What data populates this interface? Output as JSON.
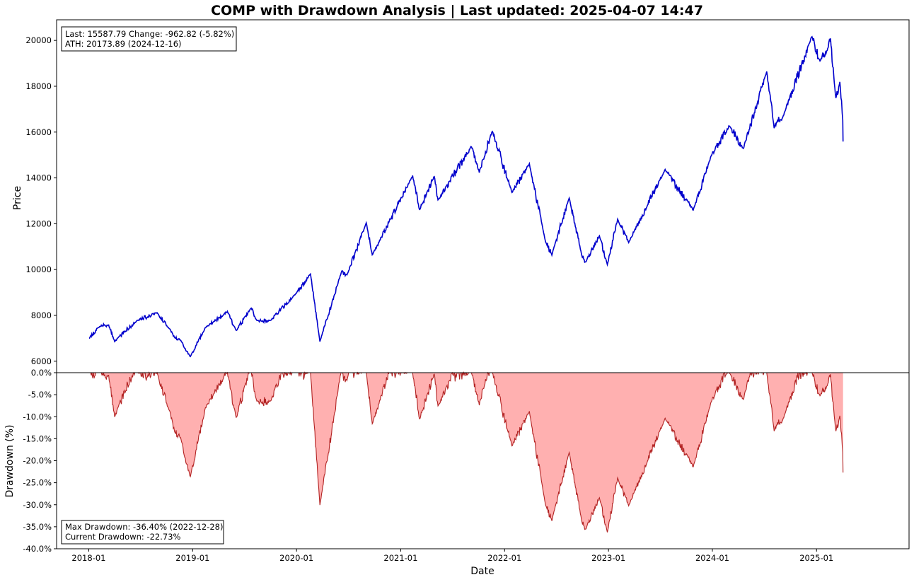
{
  "title": "COMP with Drawdown Analysis | Last updated: 2025-04-07 14:47",
  "price_panel": {
    "ylabel": "Price",
    "yticks": [
      "20000",
      "18000",
      "16000",
      "14000",
      "12000",
      "10000",
      "8000",
      "6000"
    ],
    "info_line1": "Last: 15587.79  Change: -962.82 (-5.82%)",
    "info_line2": "ATH: 20173.89 (2024-12-16)"
  },
  "drawdown_panel": {
    "ylabel": "Drawdown (%)",
    "yticks": [
      "0.0%",
      "-5.0%",
      "-10.0%",
      "-15.0%",
      "-20.0%",
      "-25.0%",
      "-30.0%",
      "-35.0%",
      "-40.0%"
    ],
    "info_line1": "Max Drawdown: -36.40% (2022-12-28)",
    "info_line2": "Current Drawdown: -22.73%"
  },
  "xaxis": {
    "xlabel": "Date",
    "xticks": [
      "2018-01",
      "2019-01",
      "2020-01",
      "2021-01",
      "2022-01",
      "2023-01",
      "2024-01",
      "2025-01"
    ]
  },
  "colors": {
    "price_line": "#0000cc",
    "drawdown_fill": "#ffb0b0",
    "drawdown_line": "#b22222"
  },
  "chart_data": [
    {
      "type": "line",
      "name": "price",
      "ylabel": "Price",
      "ylim": [
        5500,
        20900
      ],
      "grid": false,
      "x": [
        "2018-01-02",
        "2018-02-08",
        "2018-03-12",
        "2018-04-02",
        "2018-06-20",
        "2018-08-29",
        "2018-10-10",
        "2018-10-29",
        "2018-11-20",
        "2018-12-24",
        "2019-02-15",
        "2019-05-03",
        "2019-06-03",
        "2019-07-26",
        "2019-08-15",
        "2019-10-02",
        "2019-12-31",
        "2020-02-19",
        "2020-03-23",
        "2020-06-08",
        "2020-06-26",
        "2020-09-02",
        "2020-09-23",
        "2021-02-12",
        "2021-03-08",
        "2021-04-29",
        "2021-05-12",
        "2021-09-07",
        "2021-10-04",
        "2021-11-19",
        "2022-01-27",
        "2022-03-29",
        "2022-05-24",
        "2022-06-16",
        "2022-08-16",
        "2022-09-30",
        "2022-10-13",
        "2022-11-30",
        "2022-12-28",
        "2023-02-02",
        "2023-03-13",
        "2023-07-19",
        "2023-10-26",
        "2023-12-29",
        "2024-03-01",
        "2024-04-19",
        "2024-07-10",
        "2024-08-05",
        "2024-09-06",
        "2024-12-16",
        "2025-01-13",
        "2025-02-19",
        "2025-03-10",
        "2025-03-24",
        "2025-04-03",
        "2025-04-04"
      ],
      "y": [
        7006.9,
        7505.8,
        7588.3,
        6870.1,
        7781.5,
        8109.5,
        7422.0,
        7050.3,
        6908.8,
        6192.9,
        7472.4,
        8164.0,
        7333.0,
        8330.2,
        7766.6,
        7785.3,
        8972.6,
        9817.2,
        6860.7,
        9924.8,
        9757.2,
        12056.4,
        10632.9,
        14095.5,
        12609.2,
        14082.6,
        13031.7,
        15374.3,
        14255.5,
        16057.4,
        13352.8,
        14619.6,
        11264.7,
        10646.1,
        13128.1,
        10575.6,
        10321.4,
        11468.0,
        10213.3,
        12200.8,
        11188.8,
        14358.0,
        12595.6,
        15011.4,
        16274.9,
        15282.0,
        18647.5,
        16200.1,
        16690.8,
        20173.9,
        19088.1,
        20056.3,
        17468.3,
        18188.6,
        16550.6,
        15587.8
      ]
    },
    {
      "type": "area",
      "name": "drawdown",
      "ylabel": "Drawdown (%)",
      "ylim": [
        -40,
        0
      ],
      "grid": false,
      "x": [
        "2018-01-02",
        "2018-02-08",
        "2018-03-12",
        "2018-04-02",
        "2018-06-20",
        "2018-08-29",
        "2018-10-10",
        "2018-10-29",
        "2018-11-20",
        "2018-12-24",
        "2019-02-15",
        "2019-05-03",
        "2019-06-03",
        "2019-07-26",
        "2019-08-15",
        "2019-10-02",
        "2019-12-31",
        "2020-02-19",
        "2020-03-23",
        "2020-06-08",
        "2020-06-26",
        "2020-09-02",
        "2020-09-23",
        "2021-02-12",
        "2021-03-08",
        "2021-04-29",
        "2021-05-12",
        "2021-09-07",
        "2021-10-04",
        "2021-11-19",
        "2022-01-27",
        "2022-03-29",
        "2022-05-24",
        "2022-06-16",
        "2022-08-16",
        "2022-09-30",
        "2022-10-13",
        "2022-11-30",
        "2022-12-28",
        "2023-02-02",
        "2023-03-13",
        "2023-07-19",
        "2023-10-26",
        "2023-12-29",
        "2024-03-01",
        "2024-04-19",
        "2024-07-10",
        "2024-08-05",
        "2024-09-06",
        "2024-12-16",
        "2025-01-13",
        "2025-02-19",
        "2025-03-10",
        "2025-03-24",
        "2025-04-03",
        "2025-04-04"
      ],
      "y": [
        0,
        0,
        0,
        -9.5,
        0,
        0,
        -8.5,
        -13.0,
        -14.8,
        -23.6,
        -7.8,
        0,
        -10.2,
        0,
        -6.8,
        -6.5,
        0,
        0,
        -30.1,
        0,
        -1.7,
        0,
        -11.8,
        0,
        -10.5,
        -0.1,
        -7.5,
        0,
        -7.2,
        0,
        -16.8,
        -9.0,
        -29.8,
        -33.7,
        -18.2,
        -34.1,
        -35.7,
        -28.6,
        -36.4,
        -24.0,
        -30.3,
        -10.6,
        -21.6,
        -6.5,
        0,
        -6.1,
        0,
        -13.1,
        -10.5,
        0,
        -5.4,
        -0.6,
        -13.4,
        -9.8,
        -18.0,
        -22.7
      ]
    }
  ]
}
